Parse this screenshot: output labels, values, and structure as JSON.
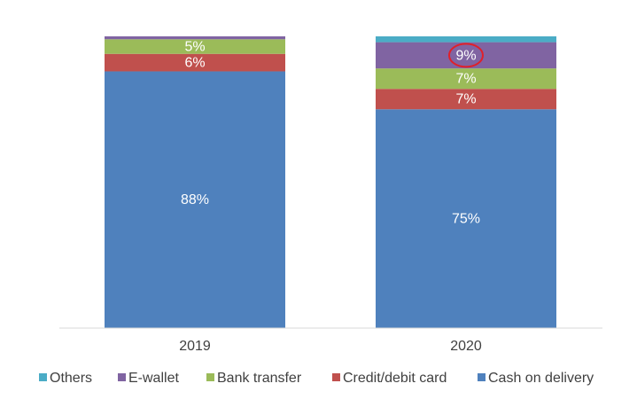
{
  "chart_data": {
    "type": "bar",
    "stacked": true,
    "categories": [
      "2019",
      "2020"
    ],
    "series": [
      {
        "name": "Cash on delivery",
        "color": "#4f81bd",
        "values": [
          88,
          75
        ],
        "labels": [
          "88%",
          "75%"
        ]
      },
      {
        "name": "Credit/debit card",
        "color": "#c0504d",
        "values": [
          6,
          7
        ],
        "labels": [
          "6%",
          "7%"
        ]
      },
      {
        "name": "Bank transfer",
        "color": "#9bbb59",
        "values": [
          5,
          7
        ],
        "labels": [
          "5%",
          "7%"
        ]
      },
      {
        "name": "E-wallet",
        "color": "#8064a2",
        "values": [
          1,
          9
        ],
        "labels": [
          "",
          "9%"
        ]
      },
      {
        "name": "Others",
        "color": "#4bacc6",
        "values": [
          0,
          2
        ],
        "labels": [
          "",
          ""
        ]
      }
    ],
    "legend_order": [
      "Others",
      "E-wallet",
      "Bank transfer",
      "Credit/debit card",
      "Cash on delivery"
    ],
    "legend_position": "bottom",
    "ylim": [
      0,
      100
    ],
    "y_axis_visible": false,
    "grid": false,
    "annotation": {
      "category": "2020",
      "series": "E-wallet",
      "shape": "circle",
      "color": "#e0202a"
    },
    "title": "",
    "xlabel": "",
    "ylabel": ""
  }
}
